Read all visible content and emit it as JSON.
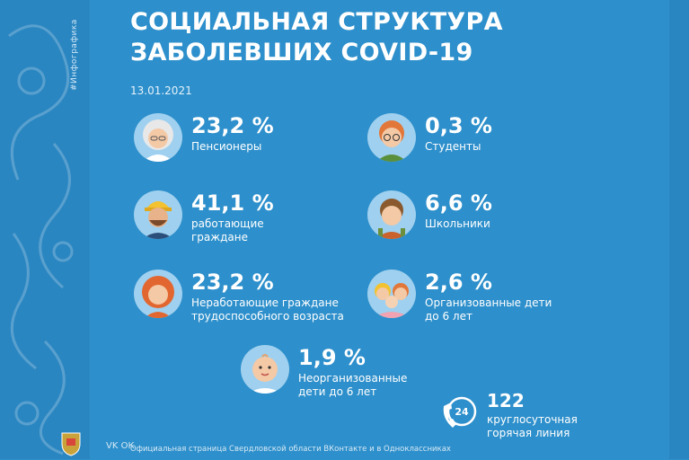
{
  "side_tag": "#Инфографика",
  "title_line1": "СОЦИАЛЬНАЯ СТРУКТУРА",
  "title_line2": "ЗАБОЛЕВШИХ COVID-19",
  "date": "13.01.2021",
  "stats": [
    {
      "pct": "23,2 %",
      "label1": "Пенсионеры",
      "label2": "",
      "icon": "elderly-woman-icon",
      "value": 23.2
    },
    {
      "pct": "0,3 %",
      "label1": "Студенты",
      "label2": "",
      "icon": "student-icon",
      "value": 0.3
    },
    {
      "pct": "41,1 %",
      "label1": "работающие",
      "label2": "граждане",
      "icon": "worker-icon",
      "value": 41.1
    },
    {
      "pct": "6,6 %",
      "label1": "Школьники",
      "label2": "",
      "icon": "schoolboy-icon",
      "value": 6.6
    },
    {
      "pct": "23,2 %",
      "label1": "Неработающие граждане",
      "label2": "трудоспособного возраста",
      "icon": "unemployed-woman-icon",
      "value": 23.2
    },
    {
      "pct": "2,6 %",
      "label1": "Организованные дети",
      "label2": "до 6 лет",
      "icon": "kindergarten-kids-icon",
      "value": 2.6
    },
    {
      "pct": "1,9 %",
      "label1": "Неорганизованные",
      "label2": "дети до 6 лет",
      "icon": "baby-icon",
      "value": 1.9
    }
  ],
  "hotline": {
    "number": "122",
    "label1": "круглосуточная",
    "label2": "горячая линия",
    "badge": "24"
  },
  "footer": "Официальная страница Свердловской области ВКонтакте и в Одноклассниках",
  "social": "VK  ОК",
  "colors": {
    "background": "#2d8fcb",
    "text": "#ffffff"
  }
}
